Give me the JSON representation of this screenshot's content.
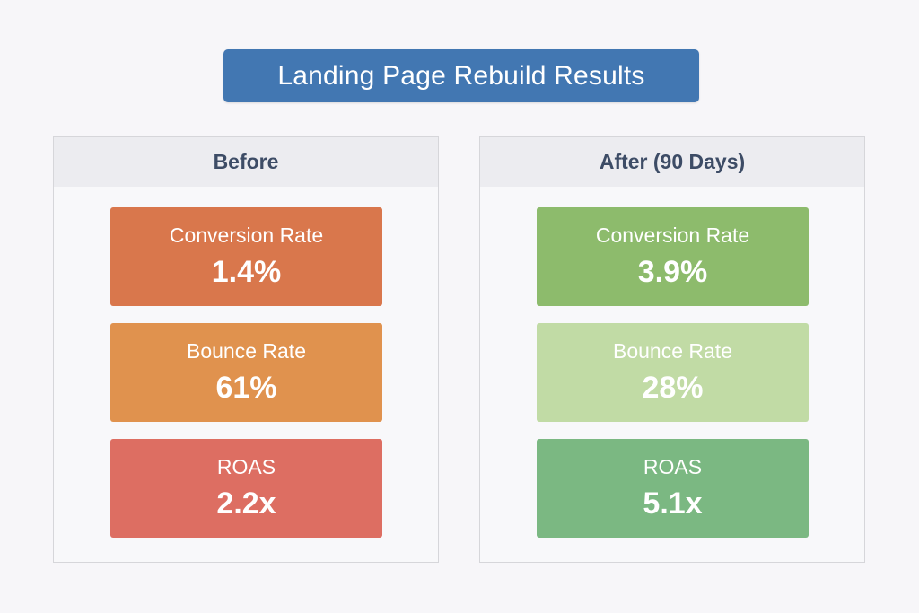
{
  "title": "Landing Page Rebuild Results",
  "panels": [
    {
      "heading": "Before",
      "metrics": [
        {
          "label": "Conversion Rate",
          "value": "1.4%",
          "color": "#d9774c"
        },
        {
          "label": "Bounce Rate",
          "value": "61%",
          "color": "#e0924e"
        },
        {
          "label": "ROAS",
          "value": "2.2x",
          "color": "#dd6e62"
        }
      ]
    },
    {
      "heading": "After (90 Days)",
      "metrics": [
        {
          "label": "Conversion Rate",
          "value": "3.9%",
          "color": "#8dbb6c"
        },
        {
          "label": "Bounce Rate",
          "value": "28%",
          "color": "#c1dba5"
        },
        {
          "label": "ROAS",
          "value": "5.1x",
          "color": "#7bb882"
        }
      ]
    }
  ],
  "colors": {
    "title_bg": "#4277b2",
    "heading_text": "#3d4c66"
  }
}
